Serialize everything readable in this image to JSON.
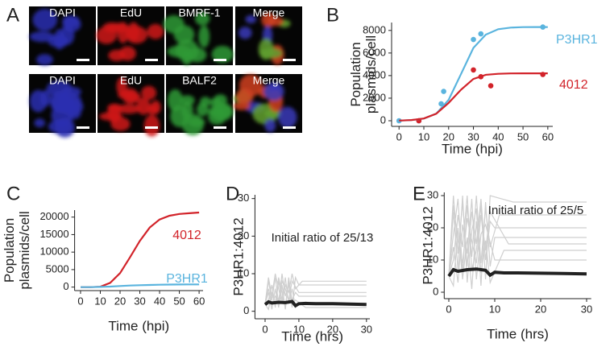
{
  "panel_a": {
    "label": "A",
    "rows": [
      [
        "DAPI",
        "EdU",
        "BMRF-1",
        "Merge"
      ],
      [
        "DAPI",
        "EdU",
        "BALF2",
        "Merge"
      ]
    ]
  },
  "chart_data": [
    {
      "type": "scatter",
      "panel": "B",
      "xlabel": "Time (hpi)",
      "ylabel": [
        "Population",
        "plasmids/cell"
      ],
      "xlim": [
        -3,
        62
      ],
      "ylim": [
        -500,
        8700
      ],
      "xticks": [
        0,
        10,
        20,
        30,
        40,
        50,
        60
      ],
      "yticks": [
        0,
        2000,
        4000,
        6000,
        8000
      ],
      "series": [
        {
          "name": "P3HR1",
          "color": "#5ab4de",
          "mode": "markers",
          "x": [
            0,
            8,
            17,
            18,
            30,
            33,
            58
          ],
          "values": [
            0,
            0,
            1500,
            2600,
            7200,
            7700,
            8300
          ]
        },
        {
          "name": "4012",
          "color": "#d2232a",
          "mode": "markers",
          "x": [
            8,
            30,
            33,
            37,
            58
          ],
          "values": [
            0,
            4500,
            3900,
            3100,
            4100
          ]
        },
        {
          "color": "#5ab4de",
          "mode": "lines",
          "x": [
            0,
            5,
            10,
            15,
            20,
            25,
            30,
            35,
            40,
            45,
            50,
            55,
            60
          ],
          "values": [
            15,
            55,
            190,
            630,
            1850,
            4150,
            6450,
            7630,
            8110,
            8250,
            8290,
            8300,
            8300
          ]
        },
        {
          "color": "#d2232a",
          "mode": "lines",
          "x": [
            0,
            5,
            10,
            15,
            20,
            25,
            30,
            35,
            40,
            45,
            50,
            55,
            60
          ],
          "values": [
            17,
            60,
            200,
            620,
            1580,
            2750,
            3700,
            4070,
            4160,
            4190,
            4200,
            4200,
            4200
          ]
        }
      ]
    },
    {
      "type": "line",
      "panel": "C",
      "xlabel": "Time (hpi)",
      "ylabel": [
        "Population",
        "plasmids/cell"
      ],
      "xlim": [
        -3,
        62
      ],
      "ylim": [
        -1000,
        22000
      ],
      "xticks": [
        0,
        10,
        20,
        30,
        40,
        50,
        60
      ],
      "yticks": [
        0,
        5000,
        10000,
        15000,
        20000
      ],
      "series": [
        {
          "name": "4012",
          "color": "#d2232a",
          "x": [
            0,
            5,
            10,
            15,
            20,
            25,
            30,
            35,
            40,
            45,
            50,
            55,
            60
          ],
          "values": [
            0,
            0,
            100,
            1200,
            4000,
            8500,
            13200,
            17000,
            19300,
            20400,
            20900,
            21100,
            21300
          ]
        },
        {
          "name": "P3HR1",
          "color": "#5ab4de",
          "x": [
            0,
            5,
            10,
            15,
            20,
            25,
            30,
            35,
            40,
            45,
            50,
            55,
            60
          ],
          "values": [
            0,
            0,
            50,
            150,
            300,
            450,
            550,
            620,
            680,
            720,
            750,
            770,
            780
          ]
        }
      ]
    },
    {
      "type": "line",
      "panel": "D",
      "xlabel": "Time (hrs)",
      "ylabel": [
        "P3HR1:4012"
      ],
      "annotation": "Initial ratio of 25/13",
      "xlim": [
        -3,
        31
      ],
      "ylim": [
        -2,
        31
      ],
      "xticks": [
        0,
        10,
        20,
        30
      ],
      "yticks": [
        0,
        10,
        20,
        30
      ],
      "series": [
        {
          "color": "#cfcfcf",
          "x": [
            0,
            1,
            2,
            3,
            4,
            5,
            6,
            7,
            8,
            9,
            10,
            30
          ],
          "values": [
            1.9,
            8,
            3,
            9,
            2,
            10,
            4,
            7,
            1,
            9,
            7,
            7
          ]
        },
        {
          "color": "#cfcfcf",
          "x": [
            0,
            1,
            2,
            3,
            4,
            5,
            6,
            7,
            8,
            9,
            10,
            30
          ],
          "values": [
            1.9,
            5,
            0.5,
            6,
            1,
            7,
            0.5,
            8,
            3,
            5,
            4,
            4
          ]
        },
        {
          "color": "#cfcfcf",
          "x": [
            0,
            1,
            2,
            3,
            4,
            5,
            6,
            7,
            8,
            9,
            10,
            30
          ],
          "values": [
            1.9,
            3,
            7,
            1,
            8,
            3,
            9,
            2,
            6,
            1,
            2,
            2
          ]
        },
        {
          "color": "#cfcfcf",
          "x": [
            0,
            1,
            2,
            3,
            4,
            5,
            6,
            7,
            8,
            9,
            11,
            30
          ],
          "values": [
            1.9,
            9,
            4,
            10,
            6,
            2,
            7,
            5,
            10,
            6,
            8,
            8
          ]
        },
        {
          "color": "#cfcfcf",
          "x": [
            0,
            1,
            2,
            3,
            4,
            5,
            6,
            7,
            8,
            9,
            12,
            30
          ],
          "values": [
            1.9,
            0.5,
            5,
            2,
            9,
            5,
            1,
            9,
            2,
            3,
            1,
            1
          ]
        },
        {
          "color": "#cfcfcf",
          "x": [
            0,
            1,
            2,
            3,
            4,
            5,
            6,
            7,
            8,
            10,
            30
          ],
          "values": [
            1.9,
            6,
            2,
            4,
            3,
            8,
            6,
            3,
            8,
            5,
            5
          ]
        },
        {
          "color": "#222222",
          "x": [
            0,
            1,
            2,
            4,
            6,
            8,
            9,
            10,
            12,
            15,
            20,
            25,
            30
          ],
          "values": [
            1.8,
            2.5,
            2.2,
            2.4,
            2.3,
            2.6,
            1.5,
            2.0,
            2.1,
            2.0,
            2.0,
            1.9,
            1.8
          ]
        }
      ]
    },
    {
      "type": "line",
      "panel": "E",
      "xlabel": "Time (hrs)",
      "ylabel": [
        "P3HR1:4012"
      ],
      "annotation": "Initial ratio of 25/5",
      "xlim": [
        -1,
        31
      ],
      "ylim": [
        -2,
        31
      ],
      "xticks": [
        0,
        10,
        20,
        30
      ],
      "yticks": [
        0,
        10,
        20,
        30
      ],
      "series": [
        {
          "color": "#cfcfcf",
          "x": [
            0,
            1,
            2,
            3,
            4,
            5,
            6,
            7,
            8,
            9,
            10,
            30
          ],
          "values": [
            5,
            30,
            12,
            28,
            8,
            25,
            15,
            29,
            10,
            22,
            20,
            20
          ]
        },
        {
          "color": "#cfcfcf",
          "x": [
            0,
            1,
            2,
            3,
            4,
            5,
            6,
            7,
            8,
            9,
            11,
            30
          ],
          "values": [
            5,
            18,
            29,
            6,
            27,
            11,
            30,
            9,
            26,
            14,
            24,
            24
          ]
        },
        {
          "color": "#cfcfcf",
          "x": [
            0,
            1,
            2,
            3,
            4,
            5,
            6,
            7,
            8,
            9,
            12,
            30
          ],
          "values": [
            5,
            2,
            20,
            4,
            17,
            1,
            22,
            6,
            16,
            3,
            13,
            13
          ]
        },
        {
          "color": "#cfcfcf",
          "x": [
            0,
            1,
            2,
            3,
            4,
            5,
            6,
            7,
            8,
            9,
            10,
            30
          ],
          "values": [
            5,
            25,
            7,
            30,
            3,
            19,
            26,
            2,
            28,
            8,
            17,
            17
          ]
        },
        {
          "color": "#cfcfcf",
          "x": [
            0,
            1,
            2,
            3,
            4,
            5,
            6,
            7,
            8,
            9,
            14,
            30
          ],
          "values": [
            5,
            10,
            24,
            14,
            30,
            7,
            13,
            27,
            4,
            30,
            28,
            28
          ]
        },
        {
          "color": "#cfcfcf",
          "x": [
            0,
            1,
            2,
            3,
            4,
            5,
            6,
            7,
            8,
            10,
            30
          ],
          "values": [
            5,
            14,
            3,
            21,
            12,
            29,
            4,
            18,
            21,
            10,
            10
          ]
        },
        {
          "color": "#cfcfcf",
          "x": [
            0,
            1,
            2,
            3,
            4,
            5,
            6,
            7,
            8,
            9,
            13,
            30
          ],
          "values": [
            5,
            27,
            16,
            9,
            23,
            16,
            9,
            24,
            13,
            25,
            15,
            15
          ]
        },
        {
          "color": "#222222",
          "x": [
            0,
            1,
            2,
            4,
            6,
            8,
            9,
            10,
            12,
            15,
            20,
            25,
            30
          ],
          "values": [
            5,
            7,
            6.5,
            7,
            7.2,
            6.8,
            5.3,
            6.2,
            6.0,
            6.0,
            5.9,
            5.8,
            5.7
          ]
        }
      ]
    }
  ]
}
